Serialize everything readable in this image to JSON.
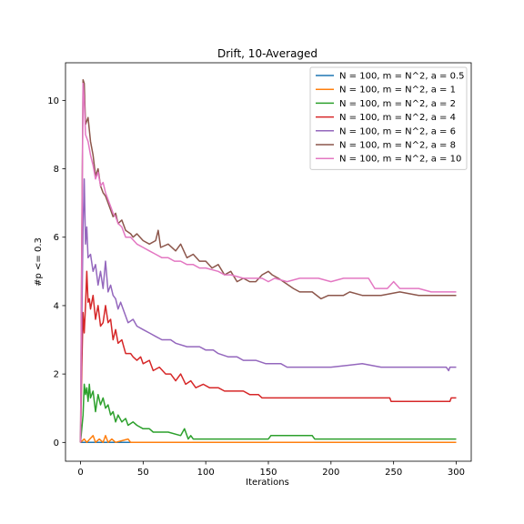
{
  "chart_data": {
    "type": "line",
    "title": "Drift, 10-Averaged",
    "xlabel": "Iterations",
    "ylabel": "#p <= 0.3",
    "xlim": [
      -12,
      312
    ],
    "ylim": [
      -0.55,
      11.1
    ],
    "xticks": [
      0,
      50,
      100,
      150,
      200,
      250,
      300
    ],
    "yticks": [
      0,
      2,
      4,
      6,
      8,
      10
    ],
    "grid": false,
    "legend_position": "top-right",
    "series": [
      {
        "name": "N = 100, m = N^2, a = 0.5",
        "color": "#1f77b4",
        "points": [
          [
            0,
            0
          ],
          [
            300,
            0
          ]
        ]
      },
      {
        "name": "N = 100, m = N^2, a = 1",
        "color": "#ff7f0e",
        "points": [
          [
            0,
            0
          ],
          [
            3,
            0.1
          ],
          [
            5,
            0
          ],
          [
            10,
            0.2
          ],
          [
            12,
            0
          ],
          [
            15,
            0.1
          ],
          [
            18,
            0
          ],
          [
            20,
            0.2
          ],
          [
            22,
            0
          ],
          [
            25,
            0.1
          ],
          [
            28,
            0
          ],
          [
            38,
            0.1
          ],
          [
            40,
            0
          ],
          [
            300,
            0
          ]
        ]
      },
      {
        "name": "N = 100, m = N^2, a = 2",
        "color": "#2ca02c",
        "points": [
          [
            0,
            0
          ],
          [
            2,
            0.8
          ],
          [
            3,
            1.7
          ],
          [
            4,
            1.4
          ],
          [
            5,
            1.6
          ],
          [
            6,
            1.2
          ],
          [
            7,
            1.7
          ],
          [
            8,
            1.3
          ],
          [
            10,
            1.5
          ],
          [
            12,
            0.9
          ],
          [
            14,
            1.4
          ],
          [
            16,
            1.1
          ],
          [
            18,
            1.3
          ],
          [
            20,
            1.0
          ],
          [
            22,
            1.1
          ],
          [
            24,
            0.8
          ],
          [
            26,
            0.9
          ],
          [
            28,
            0.6
          ],
          [
            30,
            0.8
          ],
          [
            33,
            0.6
          ],
          [
            36,
            0.7
          ],
          [
            38,
            0.5
          ],
          [
            42,
            0.6
          ],
          [
            45,
            0.5
          ],
          [
            50,
            0.4
          ],
          [
            55,
            0.4
          ],
          [
            58,
            0.3
          ],
          [
            65,
            0.3
          ],
          [
            70,
            0.3
          ],
          [
            80,
            0.2
          ],
          [
            83,
            0.4
          ],
          [
            86,
            0.1
          ],
          [
            88,
            0.2
          ],
          [
            90,
            0.1
          ],
          [
            150,
            0.1
          ],
          [
            152,
            0.2
          ],
          [
            185,
            0.2
          ],
          [
            187,
            0.1
          ],
          [
            300,
            0.1
          ]
        ]
      },
      {
        "name": "N = 100, m = N^2, a = 4",
        "color": "#d62728",
        "points": [
          [
            0,
            0
          ],
          [
            1,
            2.2
          ],
          [
            2,
            3.8
          ],
          [
            3,
            3.2
          ],
          [
            4,
            4.0
          ],
          [
            5,
            5.0
          ],
          [
            6,
            4.1
          ],
          [
            7,
            4.2
          ],
          [
            8,
            3.9
          ],
          [
            10,
            4.3
          ],
          [
            12,
            3.6
          ],
          [
            14,
            4.0
          ],
          [
            16,
            3.4
          ],
          [
            18,
            3.5
          ],
          [
            20,
            4.0
          ],
          [
            22,
            3.5
          ],
          [
            24,
            3.6
          ],
          [
            26,
            3.0
          ],
          [
            28,
            3.3
          ],
          [
            30,
            2.9
          ],
          [
            33,
            3.0
          ],
          [
            36,
            2.6
          ],
          [
            40,
            2.6
          ],
          [
            42,
            2.5
          ],
          [
            45,
            2.4
          ],
          [
            48,
            2.5
          ],
          [
            50,
            2.3
          ],
          [
            55,
            2.4
          ],
          [
            58,
            2.1
          ],
          [
            63,
            2.2
          ],
          [
            68,
            2.0
          ],
          [
            72,
            2.0
          ],
          [
            76,
            1.8
          ],
          [
            80,
            2.0
          ],
          [
            84,
            1.7
          ],
          [
            88,
            1.8
          ],
          [
            92,
            1.6
          ],
          [
            98,
            1.7
          ],
          [
            103,
            1.6
          ],
          [
            110,
            1.6
          ],
          [
            115,
            1.5
          ],
          [
            130,
            1.5
          ],
          [
            135,
            1.4
          ],
          [
            142,
            1.4
          ],
          [
            145,
            1.3
          ],
          [
            247,
            1.3
          ],
          [
            248,
            1.2
          ],
          [
            295,
            1.2
          ],
          [
            296,
            1.3
          ],
          [
            300,
            1.3
          ]
        ]
      },
      {
        "name": "N = 100, m = N^2, a = 6",
        "color": "#9467bd",
        "points": [
          [
            0,
            0
          ],
          [
            1,
            3.5
          ],
          [
            2,
            6.3
          ],
          [
            3,
            7.7
          ],
          [
            4,
            5.8
          ],
          [
            5,
            6.3
          ],
          [
            6,
            5.4
          ],
          [
            8,
            5.5
          ],
          [
            10,
            5.0
          ],
          [
            12,
            5.2
          ],
          [
            14,
            4.6
          ],
          [
            16,
            5.0
          ],
          [
            18,
            4.5
          ],
          [
            20,
            5.3
          ],
          [
            22,
            4.4
          ],
          [
            24,
            4.6
          ],
          [
            26,
            4.3
          ],
          [
            28,
            4.2
          ],
          [
            30,
            3.9
          ],
          [
            32,
            4.1
          ],
          [
            35,
            3.8
          ],
          [
            38,
            3.5
          ],
          [
            42,
            3.6
          ],
          [
            45,
            3.4
          ],
          [
            50,
            3.3
          ],
          [
            55,
            3.2
          ],
          [
            60,
            3.1
          ],
          [
            65,
            3.0
          ],
          [
            72,
            3.0
          ],
          [
            76,
            2.9
          ],
          [
            85,
            2.8
          ],
          [
            95,
            2.8
          ],
          [
            100,
            2.7
          ],
          [
            106,
            2.7
          ],
          [
            110,
            2.6
          ],
          [
            118,
            2.5
          ],
          [
            125,
            2.5
          ],
          [
            130,
            2.4
          ],
          [
            140,
            2.4
          ],
          [
            148,
            2.3
          ],
          [
            160,
            2.3
          ],
          [
            165,
            2.2
          ],
          [
            200,
            2.2
          ],
          [
            225,
            2.3
          ],
          [
            240,
            2.2
          ],
          [
            292,
            2.2
          ],
          [
            294,
            2.1
          ],
          [
            295,
            2.2
          ],
          [
            300,
            2.2
          ]
        ]
      },
      {
        "name": "N = 100, m = N^2, a = 8",
        "color": "#8c564b",
        "points": [
          [
            0,
            0
          ],
          [
            1,
            6.0
          ],
          [
            2,
            10.6
          ],
          [
            3,
            10.5
          ],
          [
            4,
            9.3
          ],
          [
            6,
            9.5
          ],
          [
            8,
            8.8
          ],
          [
            10,
            8.4
          ],
          [
            12,
            7.8
          ],
          [
            14,
            8.0
          ],
          [
            16,
            7.5
          ],
          [
            18,
            7.3
          ],
          [
            20,
            7.2
          ],
          [
            22,
            7.0
          ],
          [
            24,
            6.8
          ],
          [
            26,
            6.6
          ],
          [
            28,
            6.7
          ],
          [
            30,
            6.4
          ],
          [
            33,
            6.5
          ],
          [
            36,
            6.2
          ],
          [
            40,
            6.1
          ],
          [
            42,
            6.0
          ],
          [
            45,
            6.1
          ],
          [
            50,
            5.9
          ],
          [
            55,
            5.8
          ],
          [
            60,
            5.9
          ],
          [
            62,
            6.2
          ],
          [
            64,
            5.7
          ],
          [
            70,
            5.8
          ],
          [
            76,
            5.6
          ],
          [
            80,
            5.8
          ],
          [
            85,
            5.4
          ],
          [
            90,
            5.5
          ],
          [
            95,
            5.3
          ],
          [
            100,
            5.3
          ],
          [
            105,
            5.1
          ],
          [
            110,
            5.2
          ],
          [
            115,
            4.9
          ],
          [
            120,
            5.0
          ],
          [
            125,
            4.7
          ],
          [
            130,
            4.8
          ],
          [
            135,
            4.7
          ],
          [
            140,
            4.7
          ],
          [
            145,
            4.9
          ],
          [
            150,
            5.0
          ],
          [
            153,
            4.9
          ],
          [
            158,
            4.8
          ],
          [
            162,
            4.7
          ],
          [
            170,
            4.5
          ],
          [
            175,
            4.4
          ],
          [
            185,
            4.4
          ],
          [
            192,
            4.2
          ],
          [
            198,
            4.3
          ],
          [
            210,
            4.3
          ],
          [
            215,
            4.4
          ],
          [
            225,
            4.3
          ],
          [
            240,
            4.3
          ],
          [
            255,
            4.4
          ],
          [
            270,
            4.3
          ],
          [
            290,
            4.3
          ],
          [
            300,
            4.3
          ]
        ]
      },
      {
        "name": "N = 100, m = N^2, a = 10",
        "color": "#e377c2",
        "points": [
          [
            0,
            0
          ],
          [
            1,
            5.5
          ],
          [
            2,
            10.5
          ],
          [
            3,
            10.0
          ],
          [
            4,
            9.0
          ],
          [
            6,
            8.8
          ],
          [
            8,
            8.4
          ],
          [
            10,
            8.1
          ],
          [
            12,
            7.7
          ],
          [
            14,
            7.9
          ],
          [
            16,
            7.5
          ],
          [
            18,
            7.6
          ],
          [
            20,
            7.3
          ],
          [
            22,
            7.1
          ],
          [
            24,
            6.9
          ],
          [
            26,
            6.7
          ],
          [
            28,
            6.6
          ],
          [
            30,
            6.4
          ],
          [
            33,
            6.3
          ],
          [
            36,
            6.0
          ],
          [
            40,
            6.0
          ],
          [
            45,
            5.8
          ],
          [
            50,
            5.7
          ],
          [
            55,
            5.6
          ],
          [
            60,
            5.5
          ],
          [
            65,
            5.4
          ],
          [
            70,
            5.4
          ],
          [
            75,
            5.3
          ],
          [
            80,
            5.3
          ],
          [
            85,
            5.2
          ],
          [
            90,
            5.2
          ],
          [
            95,
            5.1
          ],
          [
            100,
            5.1
          ],
          [
            110,
            5.0
          ],
          [
            115,
            4.9
          ],
          [
            120,
            4.9
          ],
          [
            130,
            4.8
          ],
          [
            145,
            4.8
          ],
          [
            150,
            4.7
          ],
          [
            155,
            4.8
          ],
          [
            165,
            4.7
          ],
          [
            175,
            4.8
          ],
          [
            190,
            4.8
          ],
          [
            200,
            4.7
          ],
          [
            210,
            4.8
          ],
          [
            230,
            4.8
          ],
          [
            235,
            4.5
          ],
          [
            245,
            4.5
          ],
          [
            250,
            4.7
          ],
          [
            255,
            4.5
          ],
          [
            270,
            4.5
          ],
          [
            280,
            4.4
          ],
          [
            300,
            4.4
          ]
        ]
      }
    ]
  }
}
